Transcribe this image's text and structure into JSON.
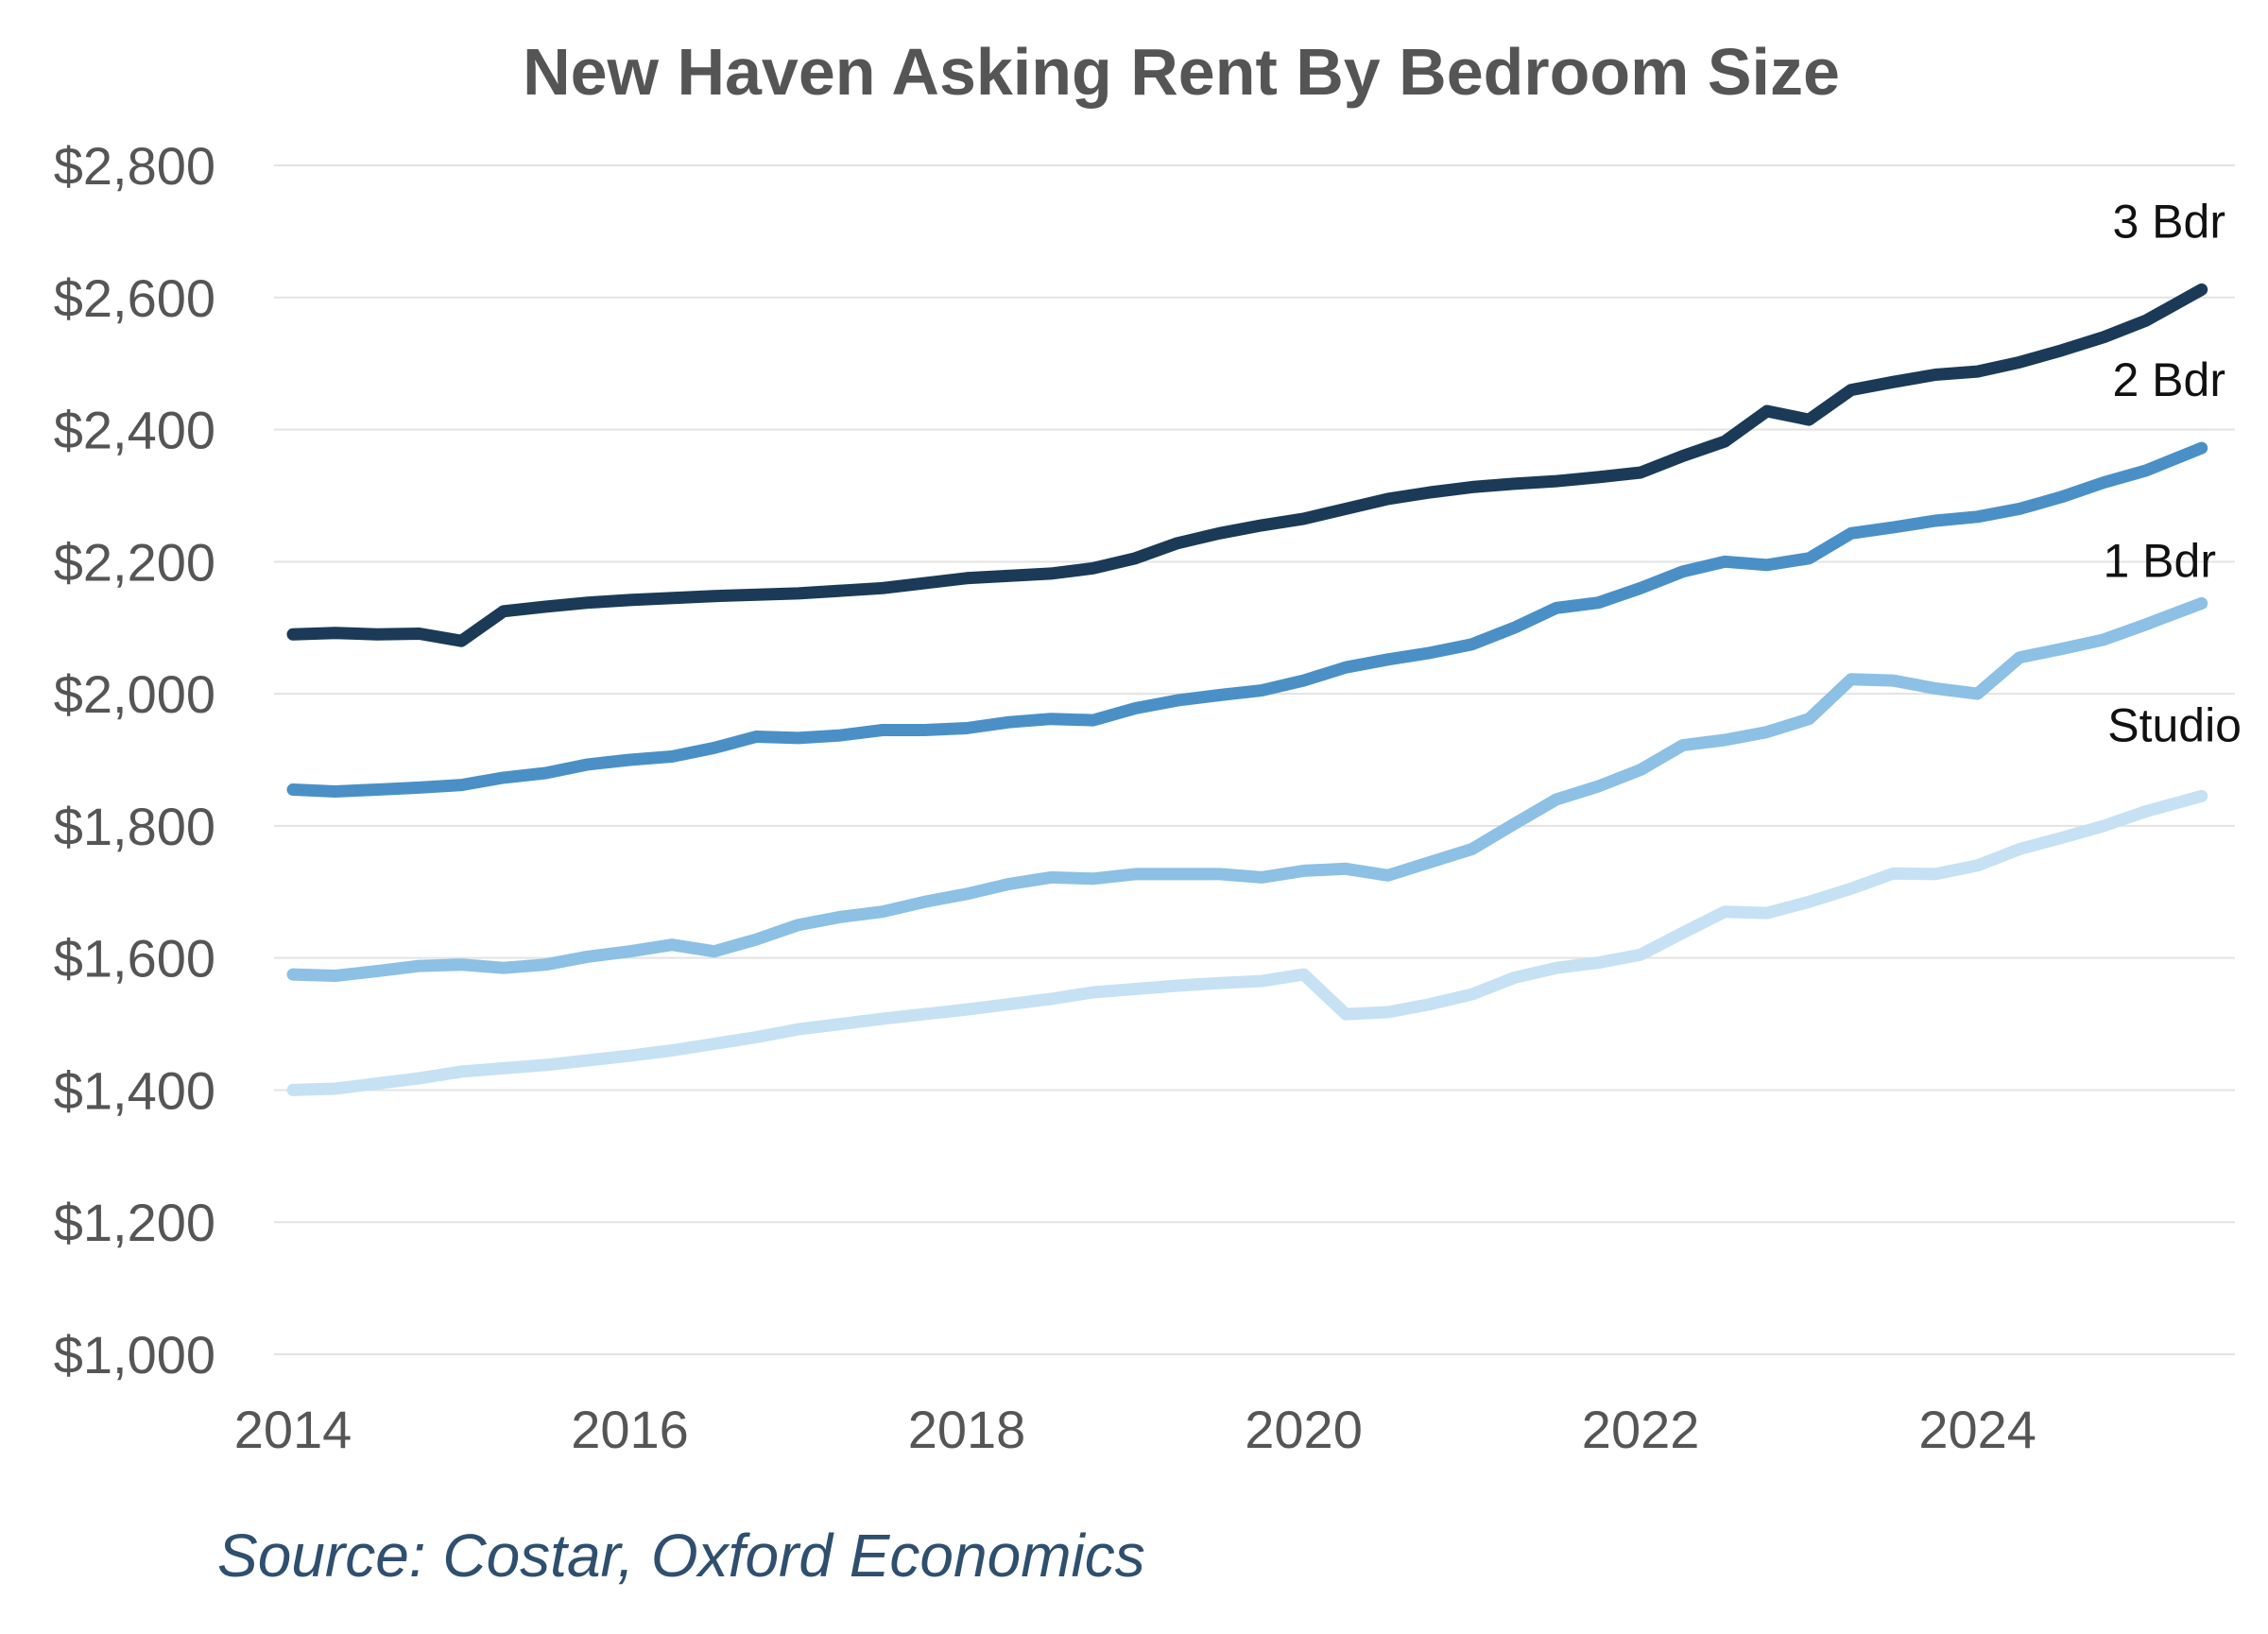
{
  "chart_data": {
    "type": "line",
    "title": "New Haven Asking Rent By Bedroom Size",
    "xlabel": "",
    "ylabel": "",
    "xlim": [
      2014,
      2025.5
    ],
    "ylim": [
      1000,
      2800
    ],
    "x_ticks": [
      "2014",
      "2016",
      "2018",
      "2020",
      "2022",
      "2024"
    ],
    "y_ticks": [
      "$1,000",
      "$1,200",
      "$1,400",
      "$1,600",
      "$1,800",
      "$2,000",
      "$2,200",
      "$2,400",
      "$2,600",
      "$2,800"
    ],
    "grid": true,
    "legend": "none",
    "series": [
      {
        "name": "3 Bdr",
        "color": "#1b3a57",
        "points": [
          [
            2014.0,
            2090
          ],
          [
            2014.25,
            2092
          ],
          [
            2014.5,
            2090
          ],
          [
            2014.75,
            2091
          ],
          [
            2015.0,
            2080
          ],
          [
            2015.25,
            2125
          ],
          [
            2015.5,
            2132
          ],
          [
            2015.75,
            2138
          ],
          [
            2016.0,
            2142
          ],
          [
            2016.5,
            2148
          ],
          [
            2017.0,
            2152
          ],
          [
            2017.5,
            2160
          ],
          [
            2018.0,
            2175
          ],
          [
            2018.5,
            2182
          ],
          [
            2018.75,
            2190
          ],
          [
            2019.0,
            2205
          ],
          [
            2019.25,
            2228
          ],
          [
            2019.5,
            2243
          ],
          [
            2019.75,
            2255
          ],
          [
            2020.0,
            2265
          ],
          [
            2020.25,
            2280
          ],
          [
            2020.5,
            2295
          ],
          [
            2020.75,
            2305
          ],
          [
            2021.0,
            2313
          ],
          [
            2021.25,
            2318
          ],
          [
            2021.5,
            2322
          ],
          [
            2021.75,
            2328
          ],
          [
            2022.0,
            2335
          ],
          [
            2022.25,
            2360
          ],
          [
            2022.5,
            2382
          ],
          [
            2022.75,
            2428
          ],
          [
            2023.0,
            2415
          ],
          [
            2023.25,
            2460
          ],
          [
            2023.5,
            2472
          ],
          [
            2023.75,
            2483
          ],
          [
            2024.0,
            2488
          ],
          [
            2024.25,
            2502
          ],
          [
            2024.5,
            2520
          ],
          [
            2024.75,
            2540
          ],
          [
            2025.0,
            2565
          ],
          [
            2025.33,
            2612
          ]
        ]
      },
      {
        "name": "2 Bdr",
        "color": "#4a90c6",
        "points": [
          [
            2014.0,
            1855
          ],
          [
            2014.25,
            1852
          ],
          [
            2014.5,
            1855
          ],
          [
            2014.75,
            1858
          ],
          [
            2015.0,
            1862
          ],
          [
            2015.25,
            1873
          ],
          [
            2015.5,
            1880
          ],
          [
            2015.75,
            1893
          ],
          [
            2016.0,
            1900
          ],
          [
            2016.25,
            1905
          ],
          [
            2016.5,
            1918
          ],
          [
            2016.75,
            1935
          ],
          [
            2017.0,
            1933
          ],
          [
            2017.25,
            1937
          ],
          [
            2017.5,
            1945
          ],
          [
            2017.75,
            1945
          ],
          [
            2018.0,
            1948
          ],
          [
            2018.25,
            1957
          ],
          [
            2018.5,
            1962
          ],
          [
            2018.75,
            1960
          ],
          [
            2019.0,
            1978
          ],
          [
            2019.25,
            1990
          ],
          [
            2019.5,
            1998
          ],
          [
            2019.75,
            2005
          ],
          [
            2020.0,
            2020
          ],
          [
            2020.25,
            2040
          ],
          [
            2020.5,
            2052
          ],
          [
            2020.75,
            2062
          ],
          [
            2021.0,
            2075
          ],
          [
            2021.25,
            2100
          ],
          [
            2021.5,
            2130
          ],
          [
            2021.75,
            2138
          ],
          [
            2022.0,
            2160
          ],
          [
            2022.25,
            2185
          ],
          [
            2022.5,
            2200
          ],
          [
            2022.75,
            2195
          ],
          [
            2023.0,
            2205
          ],
          [
            2023.25,
            2243
          ],
          [
            2023.5,
            2252
          ],
          [
            2023.75,
            2262
          ],
          [
            2024.0,
            2268
          ],
          [
            2024.25,
            2280
          ],
          [
            2024.5,
            2298
          ],
          [
            2024.75,
            2320
          ],
          [
            2025.0,
            2338
          ],
          [
            2025.33,
            2372
          ]
        ]
      },
      {
        "name": "1 Bdr",
        "color": "#8cc0e4",
        "points": [
          [
            2014.0,
            1575
          ],
          [
            2014.25,
            1573
          ],
          [
            2014.5,
            1580
          ],
          [
            2014.75,
            1588
          ],
          [
            2015.0,
            1590
          ],
          [
            2015.25,
            1585
          ],
          [
            2015.5,
            1590
          ],
          [
            2015.75,
            1602
          ],
          [
            2016.0,
            1610
          ],
          [
            2016.25,
            1620
          ],
          [
            2016.5,
            1610
          ],
          [
            2016.75,
            1628
          ],
          [
            2017.0,
            1650
          ],
          [
            2017.25,
            1662
          ],
          [
            2017.5,
            1670
          ],
          [
            2017.75,
            1685
          ],
          [
            2018.0,
            1697
          ],
          [
            2018.25,
            1712
          ],
          [
            2018.5,
            1722
          ],
          [
            2018.75,
            1720
          ],
          [
            2019.0,
            1727
          ],
          [
            2019.5,
            1727
          ],
          [
            2019.75,
            1722
          ],
          [
            2020.0,
            1732
          ],
          [
            2020.25,
            1735
          ],
          [
            2020.5,
            1725
          ],
          [
            2020.75,
            1745
          ],
          [
            2021.0,
            1765
          ],
          [
            2021.25,
            1803
          ],
          [
            2021.5,
            1840
          ],
          [
            2021.75,
            1860
          ],
          [
            2022.0,
            1885
          ],
          [
            2022.25,
            1922
          ],
          [
            2022.5,
            1930
          ],
          [
            2022.75,
            1942
          ],
          [
            2023.0,
            1962
          ],
          [
            2023.25,
            2022
          ],
          [
            2023.5,
            2020
          ],
          [
            2023.75,
            2008
          ],
          [
            2024.0,
            2000
          ],
          [
            2024.25,
            2055
          ],
          [
            2024.5,
            2068
          ],
          [
            2024.75,
            2082
          ],
          [
            2025.0,
            2105
          ],
          [
            2025.33,
            2137
          ]
        ]
      },
      {
        "name": "Studio",
        "color": "#c6e1f3",
        "points": [
          [
            2014.0,
            1400
          ],
          [
            2014.25,
            1402
          ],
          [
            2014.5,
            1410
          ],
          [
            2014.75,
            1418
          ],
          [
            2015.0,
            1428
          ],
          [
            2015.25,
            1433
          ],
          [
            2015.5,
            1438
          ],
          [
            2015.75,
            1445
          ],
          [
            2016.0,
            1452
          ],
          [
            2016.25,
            1460
          ],
          [
            2016.5,
            1470
          ],
          [
            2016.75,
            1480
          ],
          [
            2017.0,
            1492
          ],
          [
            2017.25,
            1500
          ],
          [
            2017.5,
            1508
          ],
          [
            2017.75,
            1515
          ],
          [
            2018.0,
            1522
          ],
          [
            2018.25,
            1530
          ],
          [
            2018.5,
            1538
          ],
          [
            2018.75,
            1548
          ],
          [
            2019.0,
            1553
          ],
          [
            2019.25,
            1558
          ],
          [
            2019.5,
            1562
          ],
          [
            2019.75,
            1565
          ],
          [
            2020.0,
            1575
          ],
          [
            2020.25,
            1515
          ],
          [
            2020.5,
            1518
          ],
          [
            2020.75,
            1530
          ],
          [
            2021.0,
            1545
          ],
          [
            2021.25,
            1570
          ],
          [
            2021.5,
            1585
          ],
          [
            2021.75,
            1593
          ],
          [
            2022.0,
            1605
          ],
          [
            2022.25,
            1638
          ],
          [
            2022.5,
            1670
          ],
          [
            2022.75,
            1668
          ],
          [
            2023.0,
            1685
          ],
          [
            2023.25,
            1705
          ],
          [
            2023.5,
            1728
          ],
          [
            2023.75,
            1727
          ],
          [
            2024.0,
            1740
          ],
          [
            2024.25,
            1765
          ],
          [
            2024.5,
            1782
          ],
          [
            2024.75,
            1800
          ],
          [
            2025.0,
            1822
          ],
          [
            2025.33,
            1845
          ]
        ]
      }
    ]
  },
  "source": "Source: Costar, Oxford Economics"
}
